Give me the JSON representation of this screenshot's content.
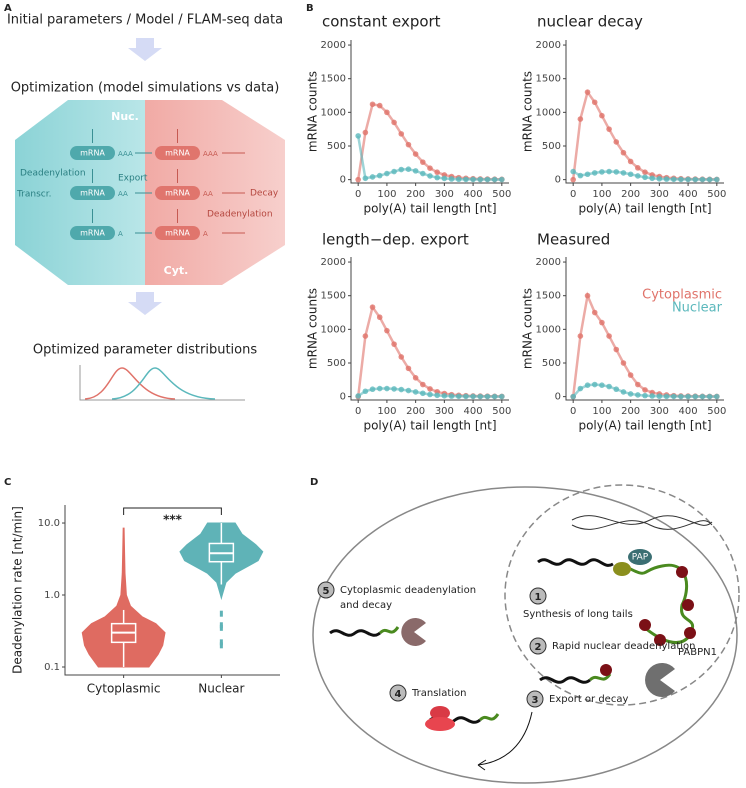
{
  "panel_labels": [
    "A",
    "B",
    "C",
    "D"
  ],
  "panel_a": {
    "title": "Initial parameters / Model / FLAM-seq data",
    "step": "Optimization (model simulations vs data)",
    "hexagon": {
      "nuc": "Nuc.",
      "cyt": "Cyt.",
      "mrna": "mRNA",
      "tails": [
        "AAA",
        "AA",
        "A"
      ],
      "deadenylation_nuc": "Deadenylation",
      "export": "Export",
      "transcription": "Transcr.",
      "decay": "Decay",
      "deadenylation_cyt": "Deadenylation"
    },
    "result": "Optimized parameter distributions"
  },
  "chart_data": [
    {
      "type": "scatter",
      "title": "constant export",
      "xlabel": "poly(A) tail length [nt]",
      "ylabel": "mRNA counts",
      "x": [
        0,
        25,
        50,
        75,
        100,
        125,
        150,
        175,
        200,
        225,
        250,
        275,
        300,
        325,
        350,
        375,
        400,
        425,
        450,
        475,
        500
      ],
      "xlim": [
        -25,
        525
      ],
      "xticks": [
        0,
        100,
        200,
        300,
        400,
        500
      ],
      "ylim": [
        -50,
        2075
      ],
      "yticks": [
        0,
        500,
        1000,
        1500,
        2000
      ],
      "series": [
        {
          "color": "#e0736a",
          "values": [
            0,
            700,
            1120,
            1100,
            1000,
            850,
            680,
            520,
            380,
            260,
            170,
            110,
            70,
            45,
            30,
            20,
            14,
            10,
            8,
            6,
            5
          ]
        },
        {
          "color": "#5bb8bc",
          "values": [
            650,
            20,
            40,
            60,
            90,
            120,
            150,
            155,
            130,
            90,
            55,
            30,
            18,
            10,
            6,
            4,
            3,
            2,
            2,
            1,
            1
          ]
        }
      ]
    },
    {
      "type": "scatter",
      "title": "nuclear decay",
      "xlabel": "poly(A) tail length [nt]",
      "ylabel": "mRNA counts",
      "x": [
        0,
        25,
        50,
        75,
        100,
        125,
        150,
        175,
        200,
        225,
        250,
        275,
        300,
        325,
        350,
        375,
        400,
        425,
        450,
        475,
        500
      ],
      "xlim": [
        -25,
        525
      ],
      "xticks": [
        0,
        100,
        200,
        300,
        400,
        500
      ],
      "ylim": [
        -50,
        2075
      ],
      "yticks": [
        0,
        500,
        1000,
        1500,
        2000
      ],
      "series": [
        {
          "color": "#e0736a",
          "values": [
            0,
            900,
            1300,
            1150,
            950,
            750,
            560,
            400,
            270,
            175,
            110,
            70,
            45,
            30,
            20,
            14,
            10,
            8,
            6,
            5,
            4
          ]
        },
        {
          "color": "#5bb8bc",
          "values": [
            120,
            60,
            80,
            100,
            115,
            120,
            115,
            100,
            80,
            55,
            35,
            20,
            12,
            8,
            5,
            4,
            3,
            2,
            2,
            1,
            1
          ]
        }
      ]
    },
    {
      "type": "scatter",
      "title": "length−dep. export",
      "xlabel": "poly(A) tail length [nt]",
      "ylabel": "mRNA counts",
      "x": [
        0,
        25,
        50,
        75,
        100,
        125,
        150,
        175,
        200,
        225,
        250,
        275,
        300,
        325,
        350,
        375,
        400,
        425,
        450,
        475,
        500
      ],
      "xlim": [
        -25,
        525
      ],
      "xticks": [
        0,
        100,
        200,
        300,
        400,
        500
      ],
      "ylim": [
        -50,
        2075
      ],
      "yticks": [
        0,
        500,
        1000,
        1500,
        2000
      ],
      "series": [
        {
          "color": "#e0736a",
          "values": [
            0,
            900,
            1330,
            1180,
            980,
            780,
            590,
            420,
            280,
            180,
            115,
            72,
            46,
            30,
            20,
            14,
            10,
            8,
            6,
            5,
            4
          ]
        },
        {
          "color": "#5bb8bc",
          "values": [
            10,
            80,
            110,
            120,
            120,
            115,
            105,
            90,
            70,
            50,
            32,
            20,
            12,
            8,
            5,
            4,
            3,
            2,
            2,
            1,
            1
          ]
        }
      ]
    },
    {
      "type": "scatter",
      "title": "Measured",
      "xlabel": "poly(A) tail length [nt]",
      "ylabel": "mRNA counts",
      "x": [
        0,
        25,
        50,
        75,
        100,
        125,
        150,
        175,
        200,
        225,
        250,
        275,
        300,
        325,
        350,
        375,
        400,
        425,
        450,
        475,
        500
      ],
      "xlim": [
        -25,
        525
      ],
      "xticks": [
        0,
        100,
        200,
        300,
        400,
        500
      ],
      "ylim": [
        -50,
        2075
      ],
      "yticks": [
        0,
        500,
        1000,
        1500,
        2000
      ],
      "series": [
        {
          "name": "Cytoplasmic",
          "color": "#e0736a",
          "values": [
            0,
            900,
            1500,
            1250,
            1100,
            900,
            700,
            500,
            320,
            180,
            100,
            60,
            40,
            25,
            15,
            10,
            8,
            6,
            5,
            4,
            3
          ]
        },
        {
          "name": "Nuclear",
          "color": "#5bb8bc",
          "values": [
            0,
            120,
            170,
            180,
            170,
            150,
            110,
            70,
            40,
            25,
            15,
            10,
            6,
            4,
            3,
            2,
            2,
            1,
            1,
            1,
            1
          ]
        }
      ]
    },
    {
      "type": "violin",
      "ylabel": "Deadenylation rate [nt/min]",
      "log_y": true,
      "categories": [
        "Cytoplasmic",
        "Nuclear"
      ],
      "colors": [
        "#df6b61",
        "#5fb3b7"
      ],
      "ylim": [
        0.0774,
        17.8
      ],
      "yticks": [
        0.1,
        {
          "value": 1,
          "label": "1.0"
        },
        {
          "value": 10,
          "label": "10.0"
        }
      ],
      "violins": [
        {
          "y": [
            0.1,
            0.15,
            0.2,
            0.3,
            0.4,
            0.5,
            0.7,
            1,
            2,
            4,
            8.5
          ],
          "width": [
            0.55,
            0.75,
            0.85,
            0.9,
            0.7,
            0.4,
            0.15,
            0.06,
            0.03,
            0.02,
            0.01
          ]
        },
        {
          "y": [
            0.9,
            1,
            1.5,
            2,
            3,
            4,
            5,
            7,
            10
          ],
          "width": [
            0,
            0.02,
            0.1,
            0.3,
            0.8,
            0.9,
            0.75,
            0.45,
            0.3
          ]
        }
      ],
      "boxes": [
        {
          "min": 0.1,
          "q1": 0.22,
          "median": 0.3,
          "q3": 0.4,
          "max": 0.62
        },
        {
          "min": 1.4,
          "q1": 2.9,
          "median": 3.8,
          "q3": 5.2,
          "max": 10
        }
      ],
      "outliers": [
        [],
        [
          0.55,
          0.38,
          0.35,
          0.22,
          0.2
        ]
      ],
      "annotation": "***"
    }
  ],
  "panel_d": {
    "steps": [
      {
        "number": "5",
        "lines": [
          "Cytoplasmic deadenylation",
          "and decay"
        ]
      },
      {
        "number": "1",
        "lines": [
          "Synthesis of long tails"
        ]
      },
      {
        "number": "2",
        "lines": [
          "Rapid nuclear deadenylation"
        ]
      },
      {
        "number": "3",
        "lines": [
          "Export or decay"
        ]
      },
      {
        "number": "4",
        "lines": [
          "Translation"
        ]
      }
    ],
    "pap": "PAP",
    "pabpn1": "PABPN1"
  }
}
